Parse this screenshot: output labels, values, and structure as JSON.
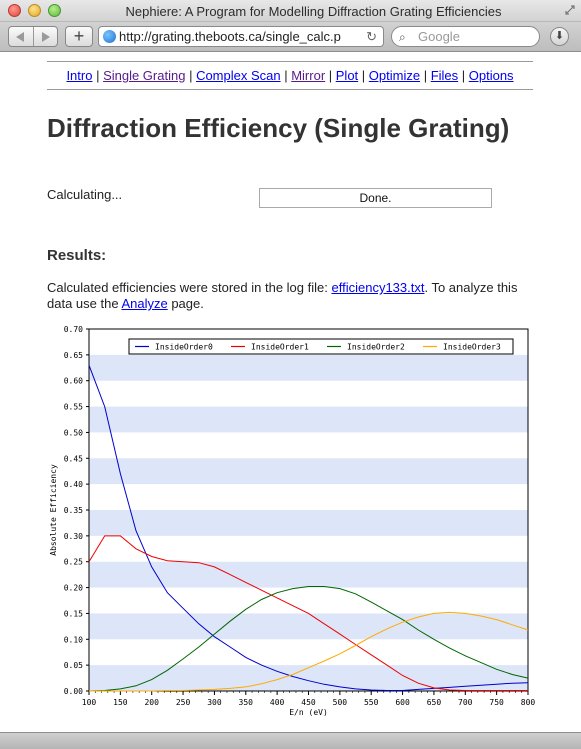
{
  "window": {
    "title": "Nephiere: A Program for Modelling Diffraction Grating Efficiencies",
    "url": "http://grating.theboots.ca/single_calc.p",
    "search_placeholder": "Google",
    "add_label": "+",
    "reload_glyph": "↻"
  },
  "menu": {
    "items": [
      {
        "label": "Intro",
        "visited": false
      },
      {
        "label": "Single Grating",
        "visited": true
      },
      {
        "label": "Complex Scan",
        "visited": false
      },
      {
        "label": "Mirror",
        "visited": true
      },
      {
        "label": "Plot",
        "visited": false
      },
      {
        "label": "Optimize",
        "visited": false
      },
      {
        "label": "Files",
        "visited": false
      },
      {
        "label": "Options",
        "visited": false
      }
    ],
    "separator": "|"
  },
  "page": {
    "title": "Diffraction Efficiency (Single Grating)",
    "calculating_label": "Calculating...",
    "status": "Done.",
    "results_heading": "Results:",
    "results_text_1": "Calculated efficiencies were stored in the log file: ",
    "log_file_link": "efficiency133.txt",
    "results_text_2": ". To analyze this data use the ",
    "analyze_link": "Analyze",
    "results_text_3": " page."
  },
  "chart_data": {
    "type": "line",
    "xlabel": "E/n (eV)",
    "ylabel": "Absolute Efficiency",
    "xlim": [
      100,
      800
    ],
    "ylim": [
      0,
      0.7
    ],
    "xticks": [
      100,
      150,
      200,
      250,
      300,
      350,
      400,
      450,
      500,
      550,
      600,
      650,
      700,
      750,
      800
    ],
    "yticks": [
      "0.00",
      "0.05",
      "0.10",
      "0.15",
      "0.20",
      "0.25",
      "0.30",
      "0.35",
      "0.40",
      "0.45",
      "0.50",
      "0.55",
      "0.60",
      "0.65",
      "0.70"
    ],
    "grid": "alternating horizontal bands",
    "band_color": "#dde5f8",
    "legend_position": "top",
    "x": [
      100,
      125,
      150,
      175,
      200,
      225,
      250,
      275,
      300,
      325,
      350,
      375,
      400,
      425,
      450,
      475,
      500,
      525,
      550,
      575,
      600,
      625,
      650,
      675,
      700,
      725,
      750,
      775,
      800
    ],
    "series": [
      {
        "name": "InsideOrder0",
        "color": "#0000cc",
        "values": [
          0.63,
          0.55,
          0.42,
          0.31,
          0.24,
          0.19,
          0.16,
          0.13,
          0.105,
          0.085,
          0.065,
          0.05,
          0.038,
          0.028,
          0.02,
          0.013,
          0.008,
          0.004,
          0.002,
          0.001,
          0.001,
          0.003,
          0.005,
          0.007,
          0.009,
          0.011,
          0.013,
          0.015,
          0.016
        ]
      },
      {
        "name": "InsideOrder1",
        "color": "#ee0000",
        "values": [
          0.25,
          0.3,
          0.3,
          0.275,
          0.26,
          0.252,
          0.25,
          0.248,
          0.24,
          0.225,
          0.21,
          0.195,
          0.18,
          0.165,
          0.15,
          0.13,
          0.11,
          0.09,
          0.07,
          0.05,
          0.03,
          0.015,
          0.006,
          0.002,
          0.001,
          0.001,
          0.001,
          0.001,
          0.001
        ]
      },
      {
        "name": "InsideOrder2",
        "color": "#006600",
        "values": [
          0.0,
          0.001,
          0.004,
          0.01,
          0.022,
          0.04,
          0.062,
          0.085,
          0.11,
          0.135,
          0.158,
          0.177,
          0.19,
          0.198,
          0.202,
          0.202,
          0.198,
          0.188,
          0.172,
          0.155,
          0.138,
          0.118,
          0.1,
          0.083,
          0.068,
          0.055,
          0.042,
          0.032,
          0.025
        ]
      },
      {
        "name": "InsideOrder3",
        "color": "#ffaa00",
        "values": [
          0.0,
          0.0,
          0.0,
          0.0,
          0.0,
          0.001,
          0.001,
          0.002,
          0.003,
          0.005,
          0.008,
          0.014,
          0.022,
          0.032,
          0.045,
          0.058,
          0.072,
          0.088,
          0.105,
          0.12,
          0.133,
          0.143,
          0.15,
          0.152,
          0.15,
          0.145,
          0.138,
          0.128,
          0.118
        ]
      }
    ]
  }
}
